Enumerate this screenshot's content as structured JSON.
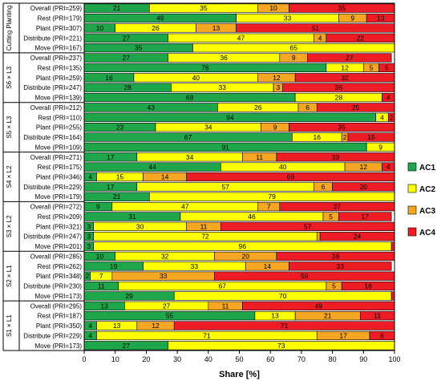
{
  "chart_data": {
    "type": "bar",
    "orientation": "horizontal",
    "stacked": true,
    "xlabel": "Share [%]",
    "xlim": [
      0,
      100
    ],
    "xticks": [
      0,
      10,
      20,
      30,
      40,
      50,
      60,
      70,
      80,
      90,
      100
    ],
    "legend_position": "right",
    "series": [
      {
        "name": "AC1",
        "color": "#1fa64a"
      },
      {
        "name": "AC2",
        "color": "#ffff00"
      },
      {
        "name": "AC3",
        "color": "#f5a623"
      },
      {
        "name": "AC4",
        "color": "#ee1c25"
      }
    ],
    "groups": [
      {
        "name": "Cutting Planting",
        "rows": [
          {
            "label": "Overall (PRI=259)",
            "values": [
              21,
              35,
              10,
              35
            ]
          },
          {
            "label": "Rest (PRI=179)",
            "values": [
              49,
              33,
              9,
              10
            ]
          },
          {
            "label": "Plant (PRI=307)",
            "values": [
              10,
              26,
              13,
              51
            ]
          },
          {
            "label": "Distribute (PRI=221)",
            "values": [
              27,
              47,
              4,
              22
            ]
          },
          {
            "label": "Move (PRI=167)",
            "values": [
              35,
              65,
              0,
              0
            ]
          }
        ]
      },
      {
        "name": "S6 × L3",
        "rows": [
          {
            "label": "Overall (PRI=237)",
            "values": [
              27,
              36,
              9,
              27
            ]
          },
          {
            "label": "Rest (PRI=135)",
            "values": [
              78,
              12,
              5,
              5
            ]
          },
          {
            "label": "Plant (PRI=259)",
            "values": [
              16,
              40,
              12,
              32
            ]
          },
          {
            "label": "Distribute (PRI=247)",
            "values": [
              28,
              33,
              3,
              36
            ]
          },
          {
            "label": "Move (PRI=139)",
            "values": [
              68,
              28,
              0,
              4
            ]
          }
        ]
      },
      {
        "name": "S5 × L3",
        "rows": [
          {
            "label": "Overall (PRI=212)",
            "values": [
              43,
              26,
              6,
              25
            ]
          },
          {
            "label": "Rest (PRI=110)",
            "values": [
              94,
              4,
              0,
              2
            ]
          },
          {
            "label": "Plant (PRI=255)",
            "values": [
              23,
              34,
              9,
              35
            ]
          },
          {
            "label": "Distribute (PRI=164)",
            "values": [
              67,
              16,
              2,
              15
            ]
          },
          {
            "label": "Move (PRI=109)",
            "values": [
              91,
              9,
              0,
              0
            ]
          }
        ]
      },
      {
        "name": "S4 × L2",
        "rows": [
          {
            "label": "Overall (PRI=271)",
            "values": [
              17,
              34,
              11,
              39
            ]
          },
          {
            "label": "Rest (PRI=175)",
            "values": [
              44,
              40,
              12,
              4
            ]
          },
          {
            "label": "Plant (PRI=346)",
            "values": [
              4,
              15,
              14,
              68
            ]
          },
          {
            "label": "Distribute (PRI=229)",
            "values": [
              17,
              57,
              6,
              20
            ]
          },
          {
            "label": "Move (PRI=179)",
            "values": [
              21,
              79,
              0,
              0
            ]
          }
        ]
      },
      {
        "name": "S3 × L2",
        "rows": [
          {
            "label": "Overall (PRI=272)",
            "values": [
              9,
              47,
              7,
              37
            ]
          },
          {
            "label": "Rest (PRI=209)",
            "values": [
              31,
              46,
              5,
              17
            ]
          },
          {
            "label": "Plant (PRI=321)",
            "values": [
              3,
              30,
              11,
              57
            ]
          },
          {
            "label": "Distribute (PRI=247)",
            "values": [
              3,
              72,
              1,
              24
            ]
          },
          {
            "label": "Move (PRI=201)",
            "values": [
              3,
              96,
              0,
              1
            ]
          }
        ]
      },
      {
        "name": "S2 × L1",
        "rows": [
          {
            "label": "Overall (PRI=285)",
            "values": [
              10,
              32,
              20,
              38
            ]
          },
          {
            "label": "Rest (PRI=262)",
            "values": [
              19,
              33,
              14,
              33
            ]
          },
          {
            "label": "Plant (PRI=348)",
            "values": [
              2,
              7,
              33,
              59
            ]
          },
          {
            "label": "Distribute (PRI=230)",
            "values": [
              11,
              67,
              5,
              18
            ]
          },
          {
            "label": "Move (PRI=173)",
            "values": [
              29,
              70,
              0,
              1
            ]
          }
        ]
      },
      {
        "name": "S1 × L1",
        "rows": [
          {
            "label": "Overall (PRI=295)",
            "values": [
              13,
              27,
              11,
              49
            ]
          },
          {
            "label": "Rest (PRI=187)",
            "values": [
              55,
              13,
              21,
              11
            ]
          },
          {
            "label": "Plant (PRI=350)",
            "values": [
              4,
              13,
              12,
              71
            ]
          },
          {
            "label": "Distribute (PRI=229)",
            "values": [
              4,
              71,
              17,
              8
            ]
          },
          {
            "label": "Move (PRI=173)",
            "values": [
              27,
              73,
              0,
              0
            ]
          }
        ]
      }
    ]
  }
}
